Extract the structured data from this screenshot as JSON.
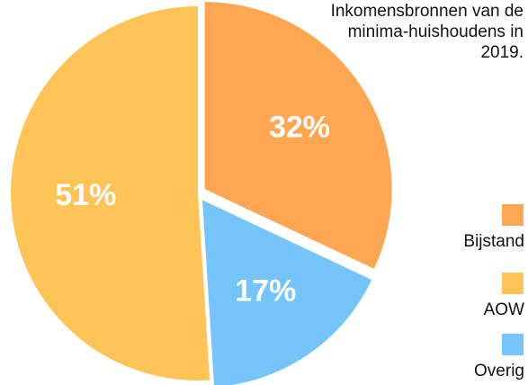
{
  "chart_data": {
    "type": "pie",
    "title": "Inkomensbronnen van de minima-huishoudens in 2019.",
    "slices": [
      {
        "label": "Bijstand",
        "value": 32,
        "value_label": "32%",
        "color": "#FFA653",
        "exploded": true
      },
      {
        "label": "Overig",
        "value": 17,
        "value_label": "17%",
        "color": "#76C5FA",
        "exploded": true
      },
      {
        "label": "AOW",
        "value": 51,
        "value_label": "51%",
        "color": "#FFC455",
        "exploded": false
      }
    ],
    "start_angle_deg": 0,
    "direction": "clockwise",
    "legend": {
      "position": "right",
      "items": [
        {
          "label": "Bijstand",
          "color": "#FFA653"
        },
        {
          "label": "AOW",
          "color": "#FFC455"
        },
        {
          "label": "Overig",
          "color": "#76C5FA"
        }
      ]
    }
  }
}
